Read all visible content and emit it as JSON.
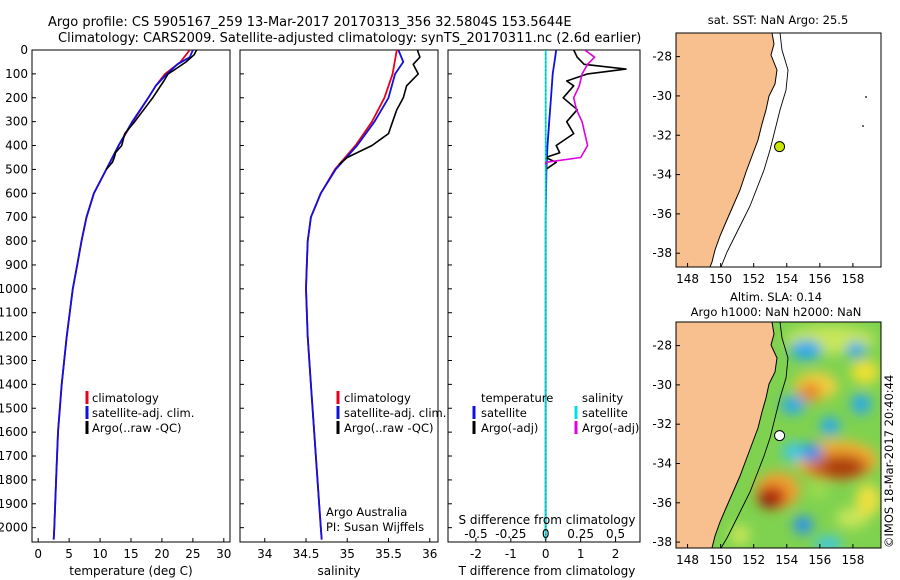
{
  "header": {
    "title_line1": "Argo profile: CS 5905167_259 13-Mar-2017 20170313_356 32.5804S 153.5644E",
    "title_line2": "Climatology: CARS2009. Satellite-adjusted climatology: synTS_20170311.nc (2.6d earlier)"
  },
  "colors": {
    "climatology": "#e8001c",
    "satellite": "#1010e0",
    "argo": "#000000",
    "salinity_satellite": "#00e0e0",
    "salinity_argo": "#e000e0",
    "land": "#f9c08f"
  },
  "chart_data": [
    {
      "id": "temperature",
      "type": "line",
      "xlabel": "temperature (deg C)",
      "ylabel": "",
      "xlim": [
        -1,
        31
      ],
      "ylim": [
        2060,
        0
      ],
      "xticks": [
        0,
        5,
        10,
        15,
        20,
        25,
        30
      ],
      "yticks": [
        0,
        100,
        200,
        300,
        400,
        500,
        600,
        700,
        800,
        900,
        1000,
        1100,
        1200,
        1300,
        1400,
        1500,
        1600,
        1700,
        1800,
        1900,
        2000
      ],
      "legend": [
        "climatology",
        "satellite-adj. clim.",
        "Argo(..raw -QC)"
      ],
      "legend_position": "lower-left",
      "series": [
        {
          "name": "climatology",
          "color": "#e8001c",
          "depth": [
            0,
            50,
            100,
            150,
            200,
            300,
            400,
            500,
            600,
            700,
            800,
            900,
            1000,
            1200,
            1400,
            1600,
            1800,
            2000,
            2050
          ],
          "values": [
            24.5,
            23.0,
            20.5,
            19.0,
            17.8,
            15.3,
            13.0,
            11.0,
            9.0,
            7.8,
            7.0,
            6.3,
            5.6,
            4.6,
            3.8,
            3.2,
            2.9,
            2.6,
            2.5
          ]
        },
        {
          "name": "satellite-adj. clim.",
          "color": "#1010e0",
          "depth": [
            0,
            30,
            60,
            100,
            150,
            200,
            300,
            400,
            500,
            600,
            700,
            800,
            900,
            1000,
            1200,
            1400,
            1600,
            1800,
            2000,
            2050
          ],
          "values": [
            25.0,
            24.5,
            22.5,
            20.8,
            19.0,
            17.8,
            15.2,
            13.0,
            11.0,
            9.0,
            7.8,
            7.0,
            6.3,
            5.6,
            4.6,
            3.8,
            3.2,
            2.9,
            2.6,
            2.5
          ]
        },
        {
          "name": "Argo(..raw -QC)",
          "color": "#000000",
          "depth": [
            0,
            20,
            50,
            80,
            100,
            130,
            200,
            300,
            350,
            400,
            430,
            450,
            470,
            500
          ],
          "values": [
            25.6,
            25.2,
            23.9,
            22.2,
            21.0,
            20.3,
            18.5,
            15.6,
            14.0,
            13.5,
            12.5,
            12.3,
            12.0,
            11.0
          ]
        }
      ]
    },
    {
      "id": "salinity",
      "type": "line",
      "xlabel": "salinity",
      "ylabel": "",
      "xlim": [
        33.7,
        36.1
      ],
      "ylim": [
        2060,
        0
      ],
      "xticks": [
        34,
        34.5,
        35,
        35.5,
        36
      ],
      "tick_labels": [
        "34",
        "34.5",
        "35",
        "35.5",
        "36"
      ],
      "legend": [
        "climatology",
        "satellite-adj. clim.",
        "Argo(..raw -QC)"
      ],
      "legend_position": "lower-left",
      "annotation": [
        "Argo Australia",
        "PI: Susan Wijffels"
      ],
      "series": [
        {
          "name": "climatology",
          "color": "#e8001c",
          "depth": [
            0,
            100,
            200,
            300,
            400,
            500,
            600,
            700,
            800,
            900,
            1000,
            1200,
            1400,
            1600,
            1800,
            2000,
            2050
          ],
          "values": [
            35.6,
            35.55,
            35.45,
            35.3,
            35.1,
            34.85,
            34.68,
            34.56,
            34.52,
            34.51,
            34.5,
            34.52,
            34.56,
            34.6,
            34.64,
            34.68,
            34.69
          ]
        },
        {
          "name": "satellite-adj. clim.",
          "color": "#1010e0",
          "depth": [
            0,
            50,
            100,
            200,
            300,
            400,
            500,
            600,
            700,
            800,
            900,
            1000,
            1200,
            1400,
            1600,
            1800,
            2000,
            2050
          ],
          "values": [
            35.62,
            35.68,
            35.58,
            35.5,
            35.33,
            35.12,
            34.86,
            34.68,
            34.56,
            34.52,
            34.51,
            34.5,
            34.52,
            34.56,
            34.6,
            34.64,
            34.68,
            34.69
          ]
        },
        {
          "name": "Argo(..raw -QC)",
          "color": "#000000",
          "depth": [
            0,
            30,
            60,
            100,
            150,
            200,
            250,
            300,
            350,
            400,
            450,
            480
          ],
          "values": [
            35.85,
            35.88,
            35.8,
            35.86,
            35.72,
            35.68,
            35.6,
            35.55,
            35.5,
            35.3,
            35.0,
            34.9
          ]
        }
      ]
    },
    {
      "id": "difference",
      "type": "line",
      "xlabel": "T difference from climatology",
      "xlabel_top": "S difference from climatology",
      "xlim": [
        -2.8,
        2.7
      ],
      "ylim": [
        2060,
        0
      ],
      "xticks": [
        -2,
        -1,
        0,
        1,
        2
      ],
      "top_ticks": [
        -0.5,
        -0.25,
        0,
        0.25,
        0.5
      ],
      "top_tick_labels": [
        "-0.5",
        "-0.25",
        "0",
        "0.25",
        "0.5"
      ],
      "legend_temperature_title": "temperature",
      "legend_salinity_title": "salinity",
      "legend_temperature": [
        "satellite",
        "Argo(-adj)"
      ],
      "legend_salinity": [
        "satellite",
        "Argo(-adj)"
      ],
      "series": [
        {
          "name": "satellite",
          "group": "temperature",
          "color": "#1010e0",
          "depth": [
            0,
            50,
            100,
            200,
            300,
            400,
            500,
            700,
            1000,
            1500,
            2000,
            2050
          ],
          "values": [
            0.3,
            0.25,
            0.2,
            0.15,
            0.1,
            0.05,
            0.02,
            0.0,
            0.0,
            0.0,
            0.0,
            0.0
          ]
        },
        {
          "name": "Argo(-adj)",
          "group": "temperature",
          "color": "#000000",
          "depth": [
            0,
            30,
            60,
            80,
            100,
            130,
            150,
            200,
            250,
            300,
            350,
            400,
            430,
            450,
            470,
            500
          ],
          "values": [
            0.8,
            0.9,
            1.1,
            2.3,
            1.2,
            0.6,
            0.8,
            0.5,
            0.9,
            0.6,
            0.8,
            0.3,
            0.4,
            0.0,
            0.3,
            0.0
          ]
        },
        {
          "name": "satellite",
          "group": "salinity",
          "color": "#00e0e0",
          "depth": [
            0,
            100,
            300,
            500,
            1000,
            1500,
            2000,
            2050
          ],
          "values": [
            0.0,
            0.0,
            0.0,
            0.0,
            0.0,
            0.0,
            0.0,
            0.0
          ]
        },
        {
          "name": "Argo(-adj)",
          "group": "salinity",
          "color": "#e000e0",
          "depth": [
            0,
            30,
            60,
            100,
            150,
            200,
            250,
            300,
            350,
            400,
            450,
            470,
            480
          ],
          "values": [
            0.28,
            0.35,
            0.3,
            0.26,
            0.24,
            0.2,
            0.22,
            0.26,
            0.28,
            0.3,
            0.25,
            0.0,
            0.0
          ]
        }
      ]
    }
  ],
  "maps": {
    "sst": {
      "title": "sat. SST: NaN Argo: 25.5",
      "xticks": [
        148,
        150,
        152,
        154,
        156,
        158
      ],
      "yticks": [
        -28,
        -30,
        -32,
        -34,
        -36,
        -38
      ],
      "marker_lon": 153.5644,
      "marker_lat": -32.5804
    },
    "sla": {
      "title_line1": "Altim. SLA: 0.14",
      "title_line2": "Argo h1000: NaN h2000: NaN",
      "xticks": [
        148,
        150,
        152,
        154,
        156,
        158
      ],
      "yticks": [
        -28,
        -30,
        -32,
        -34,
        -36,
        -38
      ],
      "marker_lon": 153.5644,
      "marker_lat": -32.5804
    },
    "credit": "©IMOS 18-Mar-2017 20:40:44"
  }
}
